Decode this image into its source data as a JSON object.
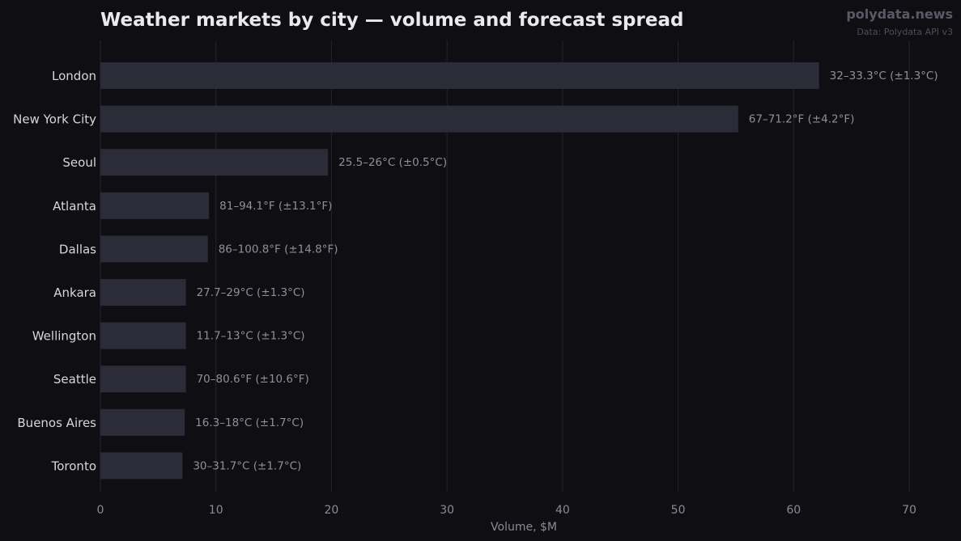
{
  "header": {
    "brand": "polydata.news",
    "source": "Data: Polydata API v3"
  },
  "chart_data": {
    "type": "bar",
    "orientation": "horizontal",
    "title": "Weather markets by city — volume and forecast spread",
    "xlabel": "Volume, $M",
    "ylabel": "",
    "xlim": [
      0,
      73.5
    ],
    "xticks": [
      0,
      10,
      20,
      30,
      40,
      50,
      60,
      70
    ],
    "grid": "vertical",
    "categories": [
      "London",
      "New York City",
      "Seoul",
      "Atlanta",
      "Dallas",
      "Ankara",
      "Wellington",
      "Seattle",
      "Buenos Aires",
      "Toronto"
    ],
    "values": [
      62.2,
      55.2,
      19.7,
      9.4,
      9.3,
      7.4,
      7.4,
      7.4,
      7.3,
      7.1
    ],
    "data_labels": [
      "32–33.3°C (±1.3°C)",
      "67–71.2°F (±4.2°F)",
      "25.5–26°C (±0.5°C)",
      "81–94.1°F (±13.1°F)",
      "86–100.8°F (±14.8°F)",
      "27.7–29°C (±1.3°C)",
      "11.7–13°C (±1.3°C)",
      "70–80.6°F (±10.6°F)",
      "16.3–18°C (±1.7°C)",
      "30–31.7°C (±1.7°C)"
    ],
    "colors": {
      "background": "#0f0f13",
      "bar": "#2c2c38",
      "grid": "#24242c"
    }
  }
}
